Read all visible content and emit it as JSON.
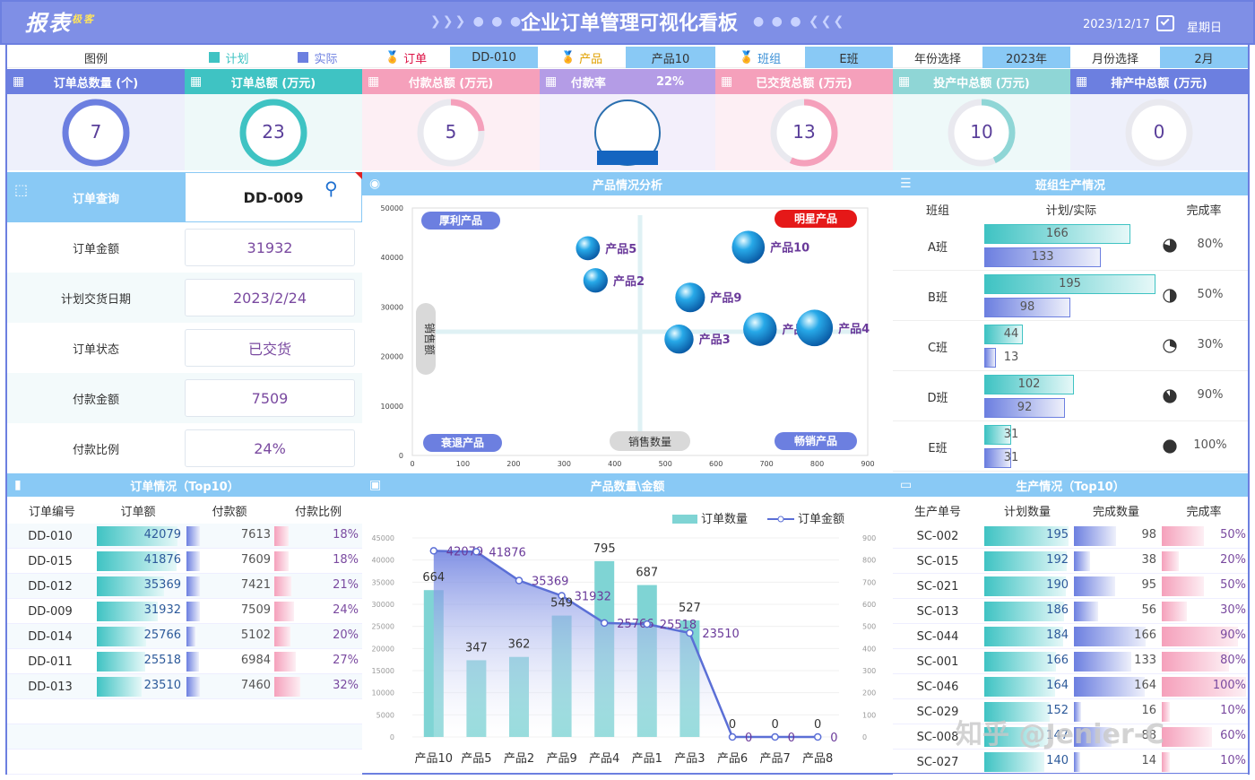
{
  "header": {
    "logo": "报表",
    "logo_small": "极客",
    "title": "企业订单管理可视化看板",
    "arrows_left": "❯❯❯ ● ● ●",
    "arrows_right": "● ● ● ❮❮❮",
    "date": "2023/12/17",
    "weekday": "星期日"
  },
  "legend": {
    "label": "图例",
    "plan": "计划",
    "actual": "实际",
    "plan_color": "#3fc3c3",
    "actual_color": "#6c7fe0"
  },
  "filters": {
    "order_label": "订单",
    "order_value": "DD-010",
    "product_label": "产品",
    "product_value": "产品10",
    "team_label": "班组",
    "team_value": "E班",
    "year_label": "年份选择",
    "year_value": "2023年",
    "month_label": "月份选择",
    "month_value": "2月"
  },
  "kpis": [
    {
      "title": "订单总数量 (个)",
      "value": "7",
      "color": "#6c7fe0",
      "bg": "#eef0fb",
      "icon": "grid-icon",
      "fill": 1.0
    },
    {
      "title": "订单总额 (万元)",
      "value": "23",
      "color": "#3fc3c3",
      "bg": "#eef9f9",
      "icon": "database-icon",
      "fill": 1.0
    },
    {
      "title": "付款总额 (万元)",
      "value": "5",
      "color": "#f5a0bb",
      "bg": "#fdeff4",
      "icon": "wallet-icon",
      "fill": 0.24
    },
    {
      "title": "付款率",
      "value": "22%",
      "color": "#b49ce6",
      "bg": "#f3effb",
      "icon": "chart-icon",
      "fill": 0.22
    },
    {
      "title": "已交货总额 (万元)",
      "value": "13",
      "color": "#f5a0bb",
      "bg": "#fdeff4",
      "icon": "trend-icon",
      "fill": 0.57
    },
    {
      "title": "投产中总额 (万元)",
      "value": "10",
      "color": "#8fd6d6",
      "bg": "#eef9f9",
      "icon": "trend-icon",
      "fill": 0.43
    },
    {
      "title": "排产中总额 (万元)",
      "value": "0",
      "color": "#6c7fe0",
      "bg": "#eef0fb",
      "icon": "trend-icon",
      "fill": 0.0
    }
  ],
  "order_query": {
    "title": "订单查询",
    "input_value": "DD-009",
    "rows": [
      {
        "label": "订单金额",
        "value": "31932"
      },
      {
        "label": "计划交货日期",
        "value": "2023/2/24"
      },
      {
        "label": "订单状态",
        "value": "已交货"
      },
      {
        "label": "付款金额",
        "value": "7509"
      },
      {
        "label": "付款比例",
        "value": "24%"
      }
    ]
  },
  "product_analysis": {
    "title": "产品情况分析",
    "quad_tl": "厚利产品",
    "quad_tr": "明星产品",
    "quad_bl": "衰退产品",
    "quad_br": "畅销产品",
    "ylabel": "销售额",
    "xlabel": "销售数量",
    "chart_data": {
      "type": "scatter",
      "xlim": [
        0,
        900
      ],
      "ylim": [
        0,
        50000
      ],
      "x_ticks": [
        "0",
        "100",
        "200",
        "300",
        "400",
        "500",
        "600",
        "700",
        "800",
        "900"
      ],
      "y_ticks": [
        "0",
        "10000",
        "20000",
        "30000",
        "40000",
        "50000"
      ],
      "points": [
        {
          "name": "产品5",
          "x": 347,
          "y": 41876
        },
        {
          "name": "产品10",
          "x": 664,
          "y": 42079
        },
        {
          "name": "产品2",
          "x": 362,
          "y": 35369
        },
        {
          "name": "产品9",
          "x": 549,
          "y": 31932
        },
        {
          "name": "产品1",
          "x": 687,
          "y": 25518
        },
        {
          "name": "产品4",
          "x": 795,
          "y": 25766
        },
        {
          "name": "产品3",
          "x": 527,
          "y": 23510
        }
      ]
    }
  },
  "team_production": {
    "title": "班组生产情况",
    "col_team": "班组",
    "col_plan": "计划/实际",
    "col_rate": "完成率",
    "rows": [
      {
        "team": "A班",
        "plan": 166,
        "actual": 133,
        "rate": "80%",
        "ratio": 0.8
      },
      {
        "team": "B班",
        "plan": 195,
        "actual": 98,
        "rate": "50%",
        "ratio": 0.5
      },
      {
        "team": "C班",
        "plan": 44,
        "actual": 13,
        "rate": "30%",
        "ratio": 0.3
      },
      {
        "team": "D班",
        "plan": 102,
        "actual": 92,
        "rate": "90%",
        "ratio": 0.9
      },
      {
        "team": "E班",
        "plan": 31,
        "actual": 31,
        "rate": "100%",
        "ratio": 1.0
      }
    ]
  },
  "order_top10": {
    "title": "订单情况（Top10）",
    "cols": [
      "订单编号",
      "订单额",
      "付款额",
      "付款比例"
    ],
    "rows": [
      {
        "id": "DD-010",
        "amount": 42079,
        "paid": 7613,
        "ratio": "18%",
        "r": 0.18
      },
      {
        "id": "DD-015",
        "amount": 41876,
        "paid": 7609,
        "ratio": "18%",
        "r": 0.18
      },
      {
        "id": "DD-012",
        "amount": 35369,
        "paid": 7421,
        "ratio": "21%",
        "r": 0.21
      },
      {
        "id": "DD-009",
        "amount": 31932,
        "paid": 7509,
        "ratio": "24%",
        "r": 0.24
      },
      {
        "id": "DD-014",
        "amount": 25766,
        "paid": 5102,
        "ratio": "20%",
        "r": 0.2
      },
      {
        "id": "DD-011",
        "amount": 25518,
        "paid": 6984,
        "ratio": "27%",
        "r": 0.27
      },
      {
        "id": "DD-013",
        "amount": 23510,
        "paid": 7460,
        "ratio": "32%",
        "r": 0.32
      }
    ]
  },
  "product_qty_amount": {
    "title": "产品数量\\金额",
    "legend_qty": "订单数量",
    "legend_amt": "订单金额",
    "chart_data": {
      "type": "bar",
      "categories": [
        "产品10",
        "产品5",
        "产品2",
        "产品9",
        "产品4",
        "产品1",
        "产品3",
        "产品6",
        "产品7",
        "产品8"
      ],
      "series": [
        {
          "name": "订单数量",
          "values": [
            664,
            347,
            362,
            549,
            795,
            687,
            527,
            0,
            0,
            0
          ]
        },
        {
          "name": "订单金额",
          "values": [
            42079,
            41876,
            35369,
            31932,
            25766,
            25518,
            23510,
            0,
            0,
            0
          ]
        }
      ],
      "ylim_left": [
        0,
        45000
      ],
      "ylim_right": [
        0,
        900
      ],
      "y_left_ticks": [
        "0",
        "5000",
        "10000",
        "15000",
        "20000",
        "25000",
        "30000",
        "35000",
        "40000",
        "45000"
      ],
      "y_right_ticks": [
        "0",
        "100",
        "200",
        "300",
        "400",
        "500",
        "600",
        "700",
        "800",
        "900"
      ]
    }
  },
  "production_top10": {
    "title": "生产情况（Top10）",
    "cols": [
      "生产单号",
      "计划数量",
      "完成数量",
      "完成率"
    ],
    "rows": [
      {
        "id": "SC-002",
        "plan": 195,
        "done": 98,
        "rate": "50%",
        "r": 0.5
      },
      {
        "id": "SC-015",
        "plan": 192,
        "done": 38,
        "rate": "20%",
        "r": 0.2
      },
      {
        "id": "SC-021",
        "plan": 190,
        "done": 95,
        "rate": "50%",
        "r": 0.5
      },
      {
        "id": "SC-013",
        "plan": 186,
        "done": 56,
        "rate": "30%",
        "r": 0.3
      },
      {
        "id": "SC-044",
        "plan": 184,
        "done": 166,
        "rate": "90%",
        "r": 0.9
      },
      {
        "id": "SC-001",
        "plan": 166,
        "done": 133,
        "rate": "80%",
        "r": 0.8
      },
      {
        "id": "SC-046",
        "plan": 164,
        "done": 164,
        "rate": "100%",
        "r": 1.0
      },
      {
        "id": "SC-029",
        "plan": 152,
        "done": 16,
        "rate": "10%",
        "r": 0.1
      },
      {
        "id": "SC-008",
        "plan": 147,
        "done": 88,
        "rate": "60%",
        "r": 0.6
      },
      {
        "id": "SC-027",
        "plan": 140,
        "done": 14,
        "rate": "10%",
        "r": 0.1
      }
    ]
  },
  "watermark": "知乎 @Jenier-C"
}
